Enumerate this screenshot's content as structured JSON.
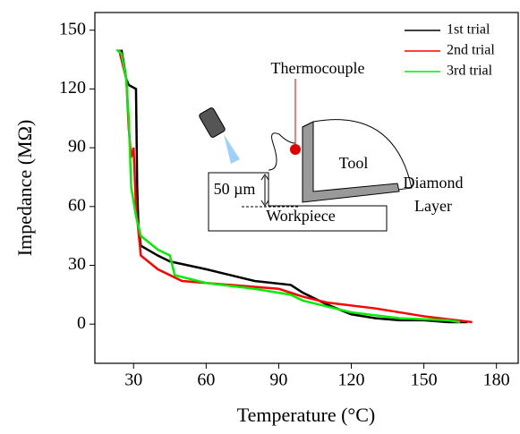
{
  "chart_data": {
    "type": "line",
    "x_label": "Temperature (°C)",
    "y_label": "Impedance (MΩ)",
    "xlim": [
      14,
      189
    ],
    "xticks": [
      30,
      60,
      90,
      120,
      150,
      180
    ],
    "ylim": [
      -20,
      159
    ],
    "yticks": [
      0,
      30,
      60,
      90,
      120,
      150
    ],
    "grid": false,
    "legend": "upper right",
    "series": [
      {
        "name": "1st trial",
        "color": "#000000",
        "x": [
          25,
          27,
          28,
          31,
          31.5,
          32,
          33,
          40,
          45,
          60,
          80,
          95,
          100,
          110,
          120,
          130,
          140,
          150,
          160,
          168
        ],
        "values": [
          140,
          125,
          122,
          120,
          70,
          50,
          40,
          35,
          32,
          28,
          22,
          20,
          16,
          10,
          5,
          3,
          2,
          2,
          1,
          1
        ]
      },
      {
        "name": "2nd trial",
        "color": "#ff0000",
        "x": [
          24,
          27,
          28,
          29,
          30,
          31,
          33,
          40,
          50,
          70,
          90,
          100,
          110,
          130,
          150,
          170
        ],
        "values": [
          140,
          125,
          100,
          85,
          90,
          60,
          35,
          28,
          22,
          20,
          18,
          14,
          11,
          8,
          4,
          1
        ]
      },
      {
        "name": "3rd trial",
        "color": "#00ee00",
        "x": [
          23,
          25,
          27,
          28,
          29,
          31,
          33,
          40,
          45,
          47,
          60,
          80,
          95,
          100,
          120,
          140,
          160,
          165
        ],
        "values": [
          140,
          138,
          125,
          105,
          70,
          55,
          45,
          38,
          35,
          25,
          21,
          18,
          15,
          12,
          6,
          3,
          2,
          1
        ]
      }
    ]
  },
  "inset": {
    "thermocouple": "Thermocouple",
    "tool": "Tool",
    "gap": "50 µm",
    "workpiece": "Workpiece",
    "diamond_layer": [
      "Diamond",
      "Layer"
    ]
  }
}
